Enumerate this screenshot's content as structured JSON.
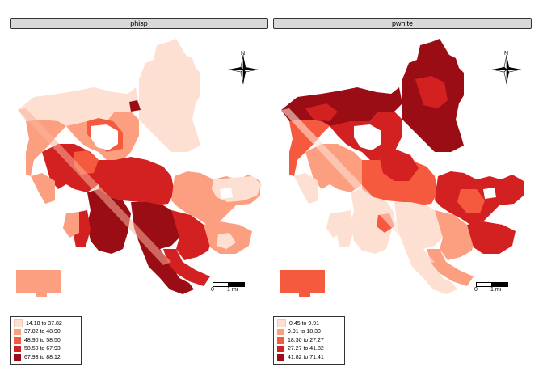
{
  "panels": [
    {
      "title": "phisp",
      "north": "N",
      "scale_labels": [
        "0",
        "1 mi"
      ],
      "legend": [
        {
          "label": "14.18 to 37.82",
          "color": "#fde0d2"
        },
        {
          "label": "37.82 to 48.90",
          "color": "#fc9f80"
        },
        {
          "label": "48.90 to 58.50",
          "color": "#f55a3f"
        },
        {
          "label": "58.50 to 67.93",
          "color": "#d32020"
        },
        {
          "label": "67.93 to 88.12",
          "color": "#9b0d14"
        }
      ]
    },
    {
      "title": "pwhite",
      "north": "N",
      "scale_labels": [
        "0",
        "1 mi"
      ],
      "legend": [
        {
          "label": "0.45 to 9.91",
          "color": "#fde0d2"
        },
        {
          "label": "9.91 to 18.30",
          "color": "#fc9f80"
        },
        {
          "label": "18.30 to 27.27",
          "color": "#f55a3f"
        },
        {
          "label": "27.27 to 41.82",
          "color": "#d32020"
        },
        {
          "label": "41.82 to 71.41",
          "color": "#9b0d14"
        }
      ]
    }
  ]
}
